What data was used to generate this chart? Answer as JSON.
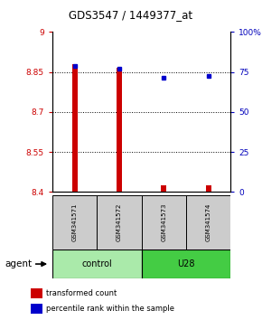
{
  "title": "GDS3547 / 1449377_at",
  "samples": [
    "GSM341571",
    "GSM341572",
    "GSM341573",
    "GSM341574"
  ],
  "group_labels": [
    "control",
    "U28"
  ],
  "bar_bottom": 8.4,
  "bar_values": [
    8.878,
    8.865,
    8.425,
    8.425
  ],
  "percentile_values": [
    78.5,
    77.0,
    71.5,
    72.5
  ],
  "ylim_left": [
    8.4,
    9.0
  ],
  "ylim_right": [
    0,
    100
  ],
  "yticks_left": [
    8.4,
    8.55,
    8.7,
    8.85,
    9.0
  ],
  "ytick_labels_left": [
    "8.4",
    "8.55",
    "8.7",
    "8.85",
    "9"
  ],
  "yticks_right": [
    0,
    25,
    50,
    75,
    100
  ],
  "ytick_labels_right": [
    "0",
    "25",
    "50",
    "75",
    "100%"
  ],
  "grid_yticks": [
    8.55,
    8.7,
    8.85
  ],
  "bar_color": "#CC0000",
  "dot_color": "#0000CC",
  "left_tick_color": "#CC0000",
  "right_tick_color": "#0000BB",
  "sample_box_color": "#CCCCCC",
  "control_color": "#AAEAAA",
  "u28_color": "#44CC44",
  "legend_bar_label": "transformed count",
  "legend_dot_label": "percentile rank within the sample",
  "agent_label": "agent",
  "x_positions": [
    0.5,
    1.5,
    2.5,
    3.5
  ],
  "bar_width": 0.12
}
